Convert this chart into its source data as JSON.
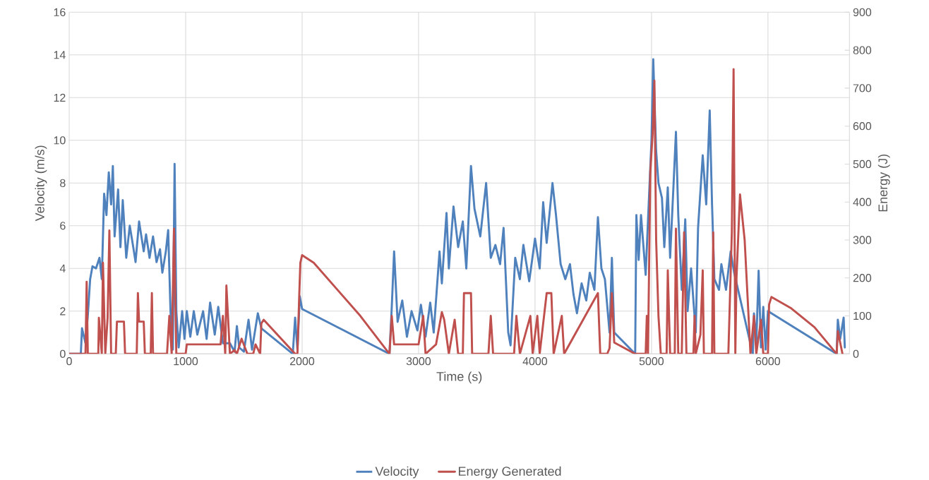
{
  "chart_data": {
    "type": "line",
    "xlabel": "Time (s)",
    "ylabel": "Velocity (m/s)",
    "y2label": "Energy (J)",
    "xlim": [
      0,
      6700
    ],
    "xticks": [
      0,
      1000,
      2000,
      3000,
      4000,
      5000,
      6000
    ],
    "ylim": [
      0,
      16
    ],
    "yticks": [
      0,
      2,
      4,
      6,
      8,
      10,
      12,
      14,
      16
    ],
    "y2lim": [
      0,
      900
    ],
    "y2ticks": [
      0,
      100,
      200,
      300,
      400,
      500,
      600,
      700,
      800,
      900
    ],
    "grid": true,
    "legend": "bottom",
    "series": [
      {
        "name": "Velocity",
        "color": "#4f81bd",
        "x": [
          0,
          100,
          110,
          140,
          160,
          180,
          200,
          230,
          260,
          280,
          300,
          320,
          340,
          360,
          375,
          390,
          420,
          440,
          460,
          490,
          520,
          550,
          570,
          600,
          620,
          640,
          660,
          690,
          720,
          750,
          780,
          800,
          830,
          850,
          870,
          890,
          905,
          920,
          940,
          970,
          990,
          1010,
          1040,
          1070,
          1100,
          1150,
          1180,
          1210,
          1250,
          1280,
          1320,
          1380,
          1420,
          1440,
          1460,
          1500,
          1540,
          1570,
          1620,
          1650,
          1920,
          1940,
          1960,
          1980,
          2000,
          2750,
          2770,
          2790,
          2820,
          2860,
          2900,
          2940,
          2990,
          3020,
          3060,
          3100,
          3130,
          3180,
          3200,
          3240,
          3260,
          3300,
          3340,
          3380,
          3410,
          3450,
          3480,
          3530,
          3580,
          3620,
          3660,
          3700,
          3730,
          3770,
          3790,
          3830,
          3870,
          3900,
          3950,
          4000,
          4040,
          4070,
          4100,
          4150,
          4180,
          4220,
          4260,
          4300,
          4330,
          4360,
          4400,
          4440,
          4470,
          4510,
          4540,
          4570,
          4600,
          4640,
          4660,
          4680,
          4860,
          4870,
          4890,
          4910,
          4950,
          4980,
          5000,
          5015,
          5040,
          5060,
          5090,
          5110,
          5140,
          5160,
          5190,
          5210,
          5230,
          5260,
          5290,
          5310,
          5340,
          5380,
          5400,
          5440,
          5470,
          5500,
          5520,
          5540,
          5580,
          5600,
          5640,
          5680,
          5710,
          5870,
          5880,
          5900,
          5920,
          5940,
          5960,
          5980,
          6000,
          6590,
          6600,
          6620,
          6650,
          6660
        ],
        "values": [
          0,
          0,
          1.2,
          0.5,
          1.8,
          3.5,
          4.1,
          4.0,
          4.5,
          3.5,
          7.5,
          6.5,
          8.5,
          7.0,
          8.8,
          5.5,
          7.7,
          5.0,
          7.2,
          4.5,
          6.0,
          5.0,
          4.3,
          6.2,
          5.5,
          4.8,
          5.6,
          4.5,
          5.5,
          4.3,
          4.9,
          3.8,
          4.8,
          5.8,
          2.0,
          0.2,
          8.9,
          2.0,
          0.3,
          2.0,
          0.7,
          2.0,
          0.8,
          2.0,
          0.9,
          2.0,
          0.7,
          2.4,
          0.9,
          2.2,
          0.5,
          0.5,
          0.1,
          1.3,
          0.3,
          0.1,
          1.6,
          0.2,
          1.9,
          1.2,
          0,
          1.7,
          0.2,
          2.7,
          2.1,
          0,
          2.2,
          4.8,
          1.5,
          2.5,
          0.8,
          2.0,
          1.1,
          2.3,
          0.8,
          2.4,
          1.0,
          4.8,
          3.3,
          6.6,
          4.0,
          6.9,
          5.0,
          6.2,
          4.0,
          8.8,
          6.8,
          5.5,
          8.0,
          4.5,
          5.1,
          4.2,
          5.9,
          1.0,
          0.4,
          4.5,
          3.5,
          5.1,
          3.4,
          5.4,
          4.0,
          7.1,
          5.2,
          8.0,
          6.5,
          4.2,
          3.5,
          4.2,
          2.8,
          1.9,
          3.3,
          2.5,
          3.8,
          3.0,
          6.4,
          4.0,
          3.5,
          1.0,
          4.5,
          1.0,
          0,
          6.5,
          4.4,
          6.5,
          3.7,
          7.5,
          10.0,
          13.8,
          9.5,
          8.0,
          7.3,
          5.0,
          7.8,
          4.5,
          8.0,
          10.4,
          6.5,
          3.0,
          6.3,
          2.0,
          4.0,
          1.0,
          5.9,
          9.3,
          7.0,
          11.4,
          7.0,
          3.5,
          3.0,
          4.2,
          3.0,
          4.8,
          3.8,
          0,
          1.9,
          0.5,
          3.9,
          0.3,
          2.2,
          0.2,
          2.0,
          0,
          1.6,
          0.7,
          1.7,
          0.3
        ]
      },
      {
        "name": "Energy Generated",
        "color": "#c0504d",
        "axis": "y2",
        "x": [
          0,
          140,
          150,
          160,
          250,
          255,
          280,
          290,
          310,
          330,
          345,
          360,
          400,
          410,
          470,
          480,
          580,
          590,
          600,
          640,
          650,
          700,
          710,
          720,
          840,
          860,
          880,
          900,
          920,
          1000,
          1010,
          1300,
          1320,
          1340,
          1350,
          1380,
          1420,
          1440,
          1480,
          1530,
          1580,
          1600,
          1640,
          1650,
          1670,
          1940,
          1960,
          1975,
          1985,
          2000,
          2100,
          2300,
          2500,
          2750,
          2770,
          2790,
          3000,
          3040,
          3060,
          3150,
          3200,
          3220,
          3260,
          3310,
          3340,
          3380,
          3390,
          3450,
          3460,
          3600,
          3620,
          3640,
          3820,
          3840,
          3870,
          3960,
          3980,
          4020,
          4040,
          4100,
          4140,
          4160,
          4230,
          4250,
          4540,
          4560,
          4620,
          4640,
          4660,
          4680,
          4860,
          4950,
          4960,
          4970,
          4990,
          5010,
          5025,
          5040,
          5060,
          5080,
          5130,
          5140,
          5160,
          5200,
          5210,
          5230,
          5260,
          5280,
          5300,
          5360,
          5370,
          5380,
          5420,
          5440,
          5450,
          5520,
          5530,
          5540,
          5660,
          5690,
          5705,
          5720,
          5730,
          5760,
          5800,
          5850,
          5880,
          5900,
          5940,
          5960,
          6000,
          6010,
          6030,
          6200,
          6400,
          6590,
          6600,
          6620,
          6640
        ],
        "values": [
          0,
          0,
          190,
          0,
          0,
          95,
          0,
          240,
          0,
          95,
          325,
          0,
          0,
          85,
          85,
          0,
          0,
          160,
          85,
          85,
          0,
          0,
          160,
          0,
          0,
          100,
          0,
          330,
          0,
          0,
          25,
          25,
          100,
          0,
          180,
          0,
          10,
          0,
          40,
          0,
          0,
          25,
          0,
          80,
          90,
          0,
          0,
          150,
          240,
          260,
          240,
          170,
          100,
          0,
          100,
          25,
          25,
          100,
          0,
          25,
          110,
          90,
          0,
          90,
          0,
          0,
          160,
          160,
          0,
          0,
          100,
          0,
          0,
          100,
          0,
          100,
          0,
          100,
          0,
          160,
          160,
          0,
          100,
          0,
          160,
          0,
          0,
          15,
          160,
          30,
          0,
          0,
          100,
          0,
          480,
          580,
          720,
          300,
          100,
          0,
          0,
          220,
          0,
          0,
          330,
          0,
          0,
          320,
          0,
          0,
          100,
          0,
          50,
          220,
          0,
          0,
          320,
          0,
          0,
          320,
          750,
          0,
          200,
          420,
          300,
          0,
          100,
          0,
          90,
          0,
          0,
          130,
          150,
          120,
          70,
          0,
          60,
          30,
          0
        ]
      }
    ]
  }
}
